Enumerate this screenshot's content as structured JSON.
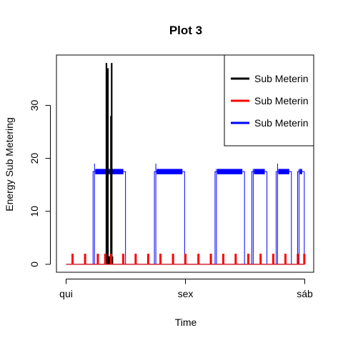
{
  "chart_data": {
    "type": "line",
    "title": "Plot 3",
    "xlabel": "Time",
    "ylabel": "Energy Sub Metering",
    "x_domain": [
      0,
      2
    ],
    "y_domain": [
      -1.5,
      39.5
    ],
    "x_ticks": [
      {
        "value": 0,
        "label": "qui"
      },
      {
        "value": 1,
        "label": "sex"
      },
      {
        "value": 2,
        "label": "sáb"
      }
    ],
    "y_ticks": [
      {
        "value": 0,
        "label": "0"
      },
      {
        "value": 10,
        "label": "10"
      },
      {
        "value": 20,
        "label": "20"
      },
      {
        "value": 30,
        "label": "30"
      }
    ],
    "legend": {
      "position": "top-right",
      "items": [
        {
          "label": "Sub Meterin",
          "color": "#000000"
        },
        {
          "label": "Sub Meterin",
          "color": "#ff0000"
        },
        {
          "label": "Sub Meterin",
          "color": "#0000ff"
        }
      ]
    },
    "series": [
      {
        "color": "#000000",
        "spikes": [
          {
            "x": 0.33,
            "y": 1.5
          },
          {
            "x": 0.338,
            "y": 38
          },
          {
            "x": 0.345,
            "y": 1.5
          },
          {
            "x": 0.35,
            "y": 37
          },
          {
            "x": 0.355,
            "y": 1.5
          },
          {
            "x": 0.362,
            "y": 1.5
          },
          {
            "x": 0.37,
            "y": 1.5
          },
          {
            "x": 0.376,
            "y": 28
          },
          {
            "x": 0.382,
            "y": 38
          },
          {
            "x": 0.388,
            "y": 1.5
          }
        ]
      },
      {
        "color": "#ff0000",
        "spike_height": 2,
        "spike_x": [
          0.054,
          0.159,
          0.266,
          0.328,
          0.376,
          0.479,
          0.583,
          0.688,
          0.791,
          0.896,
          1.0,
          1.109,
          1.213,
          1.317,
          1.421,
          1.527,
          1.63,
          1.736,
          1.838,
          1.942,
          1.996
        ]
      },
      {
        "color": "#0000ff",
        "blocks": [
          {
            "x0": 0.226,
            "x1": 0.498,
            "y": 17.5,
            "top": 19
          },
          {
            "x0": 0.74,
            "x1": 0.993,
            "y": 17.5,
            "top": 19
          },
          {
            "x0": 1.248,
            "x1": 1.495,
            "y": 17.5,
            "top": 18
          },
          {
            "x0": 1.556,
            "x1": 1.683,
            "y": 17.5,
            "top": 18
          },
          {
            "x0": 1.76,
            "x1": 1.888,
            "y": 17.5,
            "top": 19
          },
          {
            "x0": 1.94,
            "x1": 1.996,
            "y": 17.5,
            "top": 18
          }
        ]
      }
    ]
  }
}
